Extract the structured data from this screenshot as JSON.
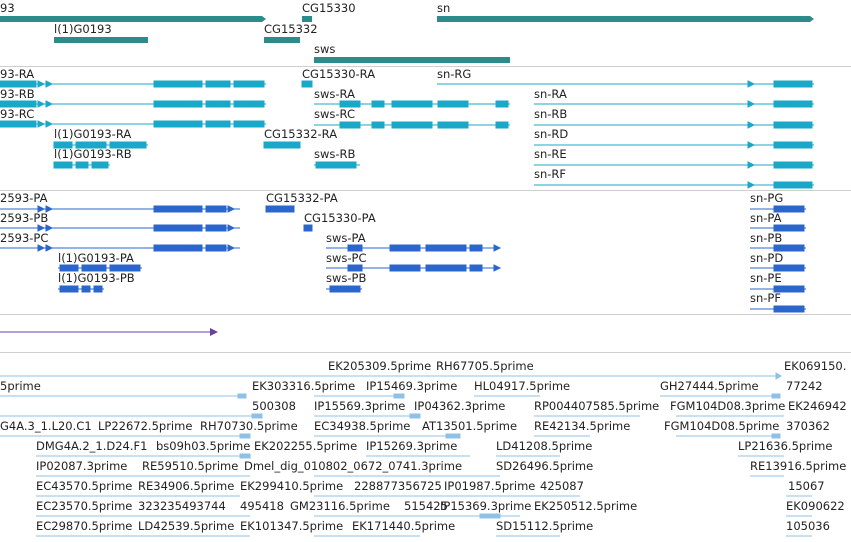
{
  "colors": {
    "gene": "#2e8b8b",
    "transcript": "#1aa8c8",
    "cds_transcript": "#2a66cc",
    "variation": "#6b3fa0",
    "est": "#8fc0e6",
    "divider": "#cfcfcf"
  },
  "tracks": {
    "genes": [
      {
        "name": "93"
      },
      {
        "name": "l(1)G0193"
      },
      {
        "name": "CG15330"
      },
      {
        "name": "CG15332"
      },
      {
        "name": "sn"
      },
      {
        "name": "sws"
      }
    ],
    "transcripts": [
      {
        "name": "93-RA"
      },
      {
        "name": "93-RB"
      },
      {
        "name": "93-RC"
      },
      {
        "name": "l(1)G0193-RA"
      },
      {
        "name": "l(1)G0193-RB"
      },
      {
        "name": "CG15330-RA"
      },
      {
        "name": "CG15332-RA"
      },
      {
        "name": "sws-RA"
      },
      {
        "name": "sws-RC"
      },
      {
        "name": "sws-RB"
      },
      {
        "name": "sn-RG"
      },
      {
        "name": "sn-RA"
      },
      {
        "name": "sn-RB"
      },
      {
        "name": "sn-RD"
      },
      {
        "name": "sn-RE"
      },
      {
        "name": "sn-RF"
      }
    ],
    "proteins": [
      {
        "name": "2593-PA"
      },
      {
        "name": "2593-PB"
      },
      {
        "name": "2593-PC"
      },
      {
        "name": "l(1)G0193-PA"
      },
      {
        "name": "l(1)G0193-PB"
      },
      {
        "name": "CG15332-PA"
      },
      {
        "name": "CG15330-PA"
      },
      {
        "name": "sws-PA"
      },
      {
        "name": "sws-PC"
      },
      {
        "name": "sws-PB"
      },
      {
        "name": "sn-PG"
      },
      {
        "name": "sn-PA"
      },
      {
        "name": "sn-PB"
      },
      {
        "name": "sn-PD"
      },
      {
        "name": "sn-PE"
      },
      {
        "name": "sn-PF"
      }
    ],
    "ests": [
      {
        "name": "EK205309.5prime"
      },
      {
        "name": "RH67705.5prime"
      },
      {
        "name": "EK069150."
      },
      {
        "name": "5prime"
      },
      {
        "name": "EK303316.5prime"
      },
      {
        "name": "IP15469.3prime"
      },
      {
        "name": "HL04917.5prime"
      },
      {
        "name": "GH27444.5prime"
      },
      {
        "name": "77242"
      },
      {
        "name": "500308"
      },
      {
        "name": "IP15569.3prime"
      },
      {
        "name": "IP04362.3prime"
      },
      {
        "name": "RP004407585.5prime"
      },
      {
        "name": "FGM104D08.3prime"
      },
      {
        "name": "EK246942"
      },
      {
        "name": "G4A.3_1.L20.C1"
      },
      {
        "name": "LP22672.5prime"
      },
      {
        "name": "RH70730.5prime"
      },
      {
        "name": "EC34938.5prime"
      },
      {
        "name": "AT13501.5prime"
      },
      {
        "name": "RE42134.5prime"
      },
      {
        "name": "FGM104D08.5prime"
      },
      {
        "name": "370362"
      },
      {
        "name": "DMG4A.2_1.D24.F1"
      },
      {
        "name": "bs09h03.5prime"
      },
      {
        "name": "EK202255.5prime"
      },
      {
        "name": "IP15269.3prime"
      },
      {
        "name": "LD41208.5prime"
      },
      {
        "name": "LP21636.5prime"
      },
      {
        "name": "IP02087.3prime"
      },
      {
        "name": "RE59510.5prime"
      },
      {
        "name": "Dmel_dig_010802_0672_0741.3prime"
      },
      {
        "name": "SD26496.5prime"
      },
      {
        "name": "RE13916.5prime"
      },
      {
        "name": "EC43570.5prime"
      },
      {
        "name": "RE34906.5prime"
      },
      {
        "name": "EK299410.5prime"
      },
      {
        "name": "228877356725"
      },
      {
        "name": "IP01987.5prime"
      },
      {
        "name": "425087"
      },
      {
        "name": "15067"
      },
      {
        "name": "EC23570.5prime"
      },
      {
        "name": "323235493744"
      },
      {
        "name": "495418"
      },
      {
        "name": "GM23116.5prime"
      },
      {
        "name": "515425"
      },
      {
        "name": "IP15369.3prime"
      },
      {
        "name": "EK250512.5prime"
      },
      {
        "name": "EK090622"
      },
      {
        "name": "EC29870.5prime"
      },
      {
        "name": "LD42539.5prime"
      },
      {
        "name": "EK101347.5prime"
      },
      {
        "name": "EK171440.5prime"
      },
      {
        "name": "SD15112.5prime"
      },
      {
        "name": "105036"
      }
    ]
  }
}
